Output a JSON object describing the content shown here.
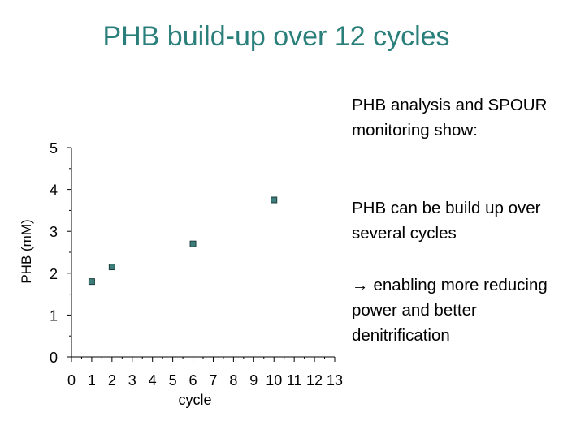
{
  "title": "PHB build-up over 12 cycles",
  "side_text": {
    "paragraph_1": "PHB analysis and SPOUR monitoring show:",
    "paragraph_2": "PHB can be build up over several cycles",
    "paragraph_3_arrow": "→",
    "paragraph_3": "enabling more reducing power and better denitrification"
  },
  "chart_data": {
    "type": "scatter",
    "xlabel": "cycle",
    "ylabel": "PHB (mM)",
    "xlim": [
      0,
      13
    ],
    "ylim": [
      0,
      5
    ],
    "x_ticks": [
      "0",
      "1",
      "2",
      "3",
      "4",
      "5",
      "6",
      "7",
      "8",
      "9",
      "10",
      "11",
      "12",
      "13"
    ],
    "y_ticks": [
      "0",
      "1",
      "2",
      "3",
      "4",
      "5"
    ],
    "grid": false,
    "legend": "none",
    "marker": "square",
    "marker_color": "#3d7d7a",
    "points": [
      {
        "x": 1,
        "y": 1.8
      },
      {
        "x": 2,
        "y": 2.15
      },
      {
        "x": 6,
        "y": 2.7
      },
      {
        "x": 10,
        "y": 3.75
      }
    ]
  }
}
